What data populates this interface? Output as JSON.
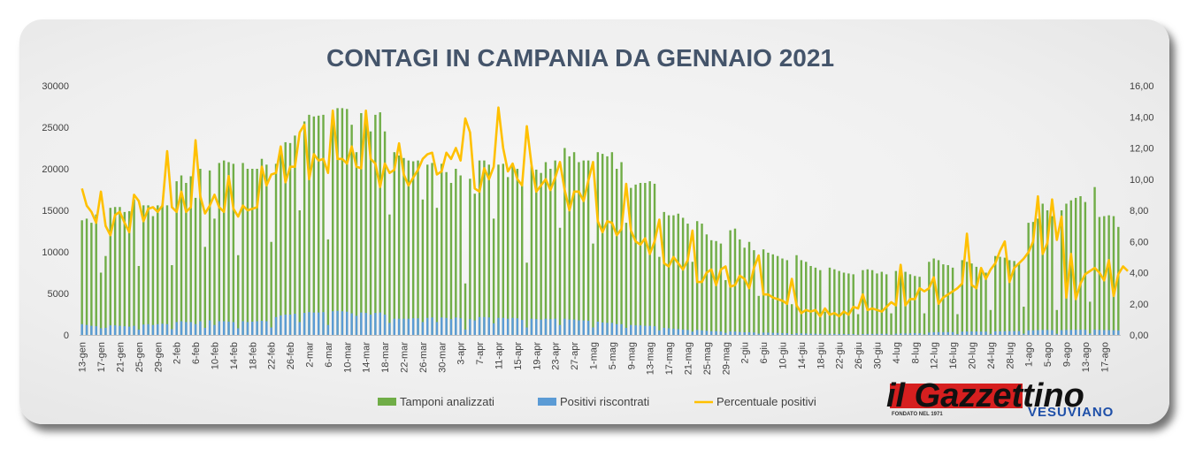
{
  "chart_data": {
    "type": "bar+line",
    "title": "CONTAGI IN CAMPANIA DA GENNAIO 2021",
    "y_left": {
      "min": 0,
      "max": 30000,
      "ticks": [
        "0",
        "5000",
        "10000",
        "15000",
        "20000",
        "25000",
        "30000"
      ]
    },
    "y_right": {
      "min": 0,
      "max": 16,
      "ticks": [
        "0,00",
        "2,00",
        "4,00",
        "6,00",
        "8,00",
        "10,00",
        "12,00",
        "14,00",
        "16,00"
      ]
    },
    "x_tick_labels": [
      "13-gen",
      "17-gen",
      "21-gen",
      "25-gen",
      "29-gen",
      "2-feb",
      "6-feb",
      "10-feb",
      "14-feb",
      "18-feb",
      "22-feb",
      "26-feb",
      "2-mar",
      "6-mar",
      "10-mar",
      "14-mar",
      "18-mar",
      "22-mar",
      "26-mar",
      "30-mar",
      "3-apr",
      "7-apr",
      "11-apr",
      "15-apr",
      "19-apr",
      "23-apr",
      "27-apr",
      "1-mag",
      "5-mag",
      "9-mag",
      "13-mag",
      "17-mag",
      "21-mag",
      "25-mag",
      "29-mag",
      "2-giu",
      "6-giu",
      "10-giu",
      "14-giu",
      "18-giu",
      "22-giu",
      "26-giu",
      "30-giu",
      "4-lug",
      "8-lug",
      "12-lug",
      "16-lug",
      "20-lug",
      "24-lug",
      "28-lug",
      "1-ago",
      "5-ago",
      "9-ago",
      "13-ago",
      "17-ago"
    ],
    "days_per_tick": 4,
    "grid": false,
    "legend": "bottom",
    "series": [
      {
        "name": "Tamponi analizzati",
        "type": "bar",
        "axis": "left",
        "color": "#70ad47",
        "values": [
          13800,
          14000,
          13500,
          14500,
          7500,
          9500,
          15300,
          15400,
          15400,
          14800,
          14900,
          16300,
          8300,
          15600,
          15600,
          14300,
          15600,
          15800,
          15600,
          8400,
          18500,
          19200,
          18300,
          19100,
          16500,
          20000,
          10600,
          19800,
          14000,
          20700,
          21000,
          20800,
          20600,
          9600,
          20700,
          20000,
          20000,
          20000,
          21200,
          20500,
          11200,
          20600,
          22000,
          23200,
          23100,
          24000,
          15000,
          25700,
          26500,
          26300,
          26400,
          26500,
          11500,
          27000,
          27300,
          27300,
          27200,
          25300,
          22000,
          26700,
          26300,
          24500,
          26500,
          26800,
          24500,
          14500,
          22000,
          21600,
          21300,
          21000,
          20900,
          21000,
          16300,
          20500,
          20700,
          15300,
          20600,
          19600,
          18300,
          20000,
          19200,
          6200,
          18800,
          17000,
          21000,
          21000,
          20500,
          14000,
          20500,
          20600,
          19000,
          20600,
          20000,
          18000,
          8700,
          20300,
          19900,
          19500,
          20800,
          20000,
          21000,
          12900,
          22500,
          21500,
          22000,
          20800,
          21000,
          21000,
          11000,
          22000,
          21800,
          21500,
          22000,
          20000,
          20800,
          13500,
          17700,
          18100,
          18300,
          18300,
          18500,
          18200,
          9400,
          14800,
          14400,
          14400,
          14600,
          14100,
          13400,
          8800,
          13700,
          13400,
          12100,
          11400,
          11300,
          11000,
          6600,
          12600,
          12800,
          11500,
          10500,
          11200,
          10200,
          4700,
          10300,
          9900,
          9700,
          9500,
          9200,
          9000,
          3700,
          9600,
          9000,
          8800,
          8300,
          8100,
          7800,
          2800,
          8100,
          7900,
          7700,
          7500,
          7400,
          7300,
          2500,
          7800,
          7900,
          7800,
          7400,
          7600,
          7300,
          2600,
          7700,
          7800,
          7600,
          7300,
          7100,
          7000,
          2600,
          8800,
          9200,
          9000,
          8500,
          8400,
          8100,
          2500,
          9000,
          8800,
          8600,
          8200,
          7800,
          7500,
          3000,
          9500,
          9400,
          9300,
          9000,
          8900,
          8600,
          3400,
          13500,
          13600,
          14000,
          15800,
          15000,
          14300,
          3000,
          15000,
          15800,
          16200,
          16500,
          16700,
          16000,
          4000,
          17800,
          14200,
          14300,
          14400,
          14300,
          13000
        ]
      },
      {
        "name": "Positivi riscontrati",
        "type": "bar",
        "axis": "left",
        "color": "#5b9bd5",
        "values": [
          1300,
          1200,
          1100,
          1050,
          800,
          850,
          1150,
          1150,
          1100,
          1050,
          1000,
          1100,
          650,
          1250,
          1300,
          1200,
          1300,
          1350,
          1300,
          700,
          1550,
          1650,
          1550,
          1550,
          1300,
          1650,
          850,
          1750,
          1200,
          1650,
          1650,
          1600,
          1550,
          800,
          1650,
          1550,
          1600,
          1650,
          1700,
          1650,
          900,
          2150,
          2350,
          2450,
          2450,
          2550,
          1550,
          2650,
          2750,
          2700,
          2700,
          2750,
          1200,
          2850,
          2900,
          2850,
          2800,
          2600,
          2300,
          2700,
          2650,
          2450,
          2650,
          2700,
          2450,
          1450,
          1950,
          1950,
          1950,
          1950,
          2000,
          2000,
          1550,
          2050,
          2100,
          1550,
          2100,
          2050,
          1900,
          2100,
          2000,
          650,
          1900,
          1750,
          2150,
          2150,
          2100,
          1400,
          2050,
          2050,
          1950,
          2050,
          2000,
          1800,
          900,
          1950,
          1900,
          1850,
          1950,
          1900,
          1950,
          1200,
          1950,
          1850,
          1850,
          1750,
          1750,
          1700,
          900,
          1600,
          1500,
          1450,
          1450,
          1300,
          1300,
          850,
          1200,
          1150,
          1150,
          1100,
          1100,
          1050,
          550,
          850,
          800,
          750,
          700,
          650,
          600,
          400,
          600,
          550,
          500,
          450,
          450,
          420,
          250,
          420,
          400,
          350,
          320,
          320,
          300,
          150,
          280,
          270,
          250,
          240,
          220,
          210,
          90,
          200,
          180,
          170,
          150,
          140,
          130,
          50,
          130,
          120,
          115,
          110,
          100,
          100,
          35,
          110,
          120,
          130,
          130,
          140,
          140,
          45,
          150,
          170,
          180,
          190,
          200,
          200,
          70,
          280,
          330,
          340,
          340,
          340,
          340,
          110,
          400,
          410,
          420,
          410,
          400,
          400,
          130,
          430,
          440,
          450,
          460,
          460,
          460,
          150,
          550,
          560,
          580,
          600,
          600,
          580,
          140,
          580,
          600,
          610,
          620,
          630,
          620,
          170,
          640,
          600,
          590,
          580,
          570,
          550
        ]
      },
      {
        "name": "Percentuale positivi",
        "type": "line",
        "axis": "right",
        "color": "#ffc000",
        "values": [
          9.4,
          8.3,
          7.9,
          7.2,
          9.2,
          7.0,
          6.4,
          7.7,
          7.9,
          7.2,
          6.6,
          9.0,
          8.6,
          7.3,
          8.1,
          8.2,
          7.9,
          8.3,
          11.8,
          8.2,
          7.9,
          9.2,
          7.9,
          8.2,
          12.5,
          8.9,
          7.8,
          8.3,
          9.0,
          8.2,
          7.9,
          10.2,
          8.1,
          7.6,
          8.3,
          8.0,
          8.1,
          8.2,
          10.8,
          9.6,
          10.3,
          10.4,
          12.1,
          9.8,
          10.8,
          10.8,
          13.0,
          13.5,
          10.0,
          11.6,
          11.2,
          11.3,
          10.4,
          14.4,
          11.3,
          11.3,
          11.0,
          12.1,
          10.8,
          10.7,
          14.4,
          11.3,
          11.0,
          9.5,
          11.0,
          10.4,
          10.6,
          12.3,
          10.3,
          9.6,
          10.1,
          10.6,
          11.3,
          11.6,
          11.7,
          10.3,
          10.5,
          11.7,
          11.3,
          12.0,
          11.2,
          13.9,
          13.0,
          9.4,
          9.2,
          10.7,
          10.0,
          10.8,
          14.6,
          12.0,
          10.5,
          11.0,
          10.0,
          9.6,
          13.4,
          10.9,
          9.2,
          9.6,
          10.0,
          9.3,
          10.1,
          11.1,
          9.3,
          8.0,
          9.2,
          9.2,
          8.6,
          9.9,
          11.1,
          7.3,
          6.6,
          7.3,
          7.2,
          6.4,
          6.8,
          9.7,
          6.7,
          6.0,
          5.8,
          6.2,
          5.2,
          6.0,
          7.4,
          4.6,
          4.4,
          5.0,
          4.6,
          4.2,
          4.8,
          6.7,
          3.4,
          3.4,
          4.0,
          4.2,
          3.2,
          4.2,
          4.4,
          3.1,
          3.2,
          3.8,
          3.6,
          3.0,
          4.3,
          5.1,
          2.6,
          2.6,
          2.4,
          2.3,
          2.2,
          2.0,
          3.6,
          1.9,
          1.4,
          1.6,
          1.5,
          1.6,
          1.2,
          1.7,
          1.3,
          1.4,
          1.2,
          1.5,
          1.3,
          1.8,
          1.7,
          2.6,
          1.6,
          1.7,
          1.6,
          1.5,
          1.8,
          2.1,
          1.9,
          4.5,
          1.9,
          2.3,
          2.3,
          3.0,
          2.8,
          3.0,
          3.7,
          2.0,
          2.4,
          2.6,
          2.8,
          3.0,
          3.3,
          6.5,
          3.2,
          3.0,
          4.3,
          3.6,
          4.2,
          4.6,
          5.4,
          6.0,
          3.4,
          4.3,
          4.6,
          4.9,
          5.3,
          6.0,
          8.9,
          5.2,
          5.9,
          8.7,
          6.1,
          7.6,
          2.4,
          5.2,
          2.3,
          3.3,
          3.9,
          4.1,
          4.3,
          4.0,
          3.5,
          4.8,
          2.5,
          3.9,
          4.4,
          4.1
        ]
      }
    ]
  },
  "logo": {
    "main": "il Gazzettino",
    "sub": "VESUVIANO",
    "small": "FONDATO NEL 1971"
  }
}
